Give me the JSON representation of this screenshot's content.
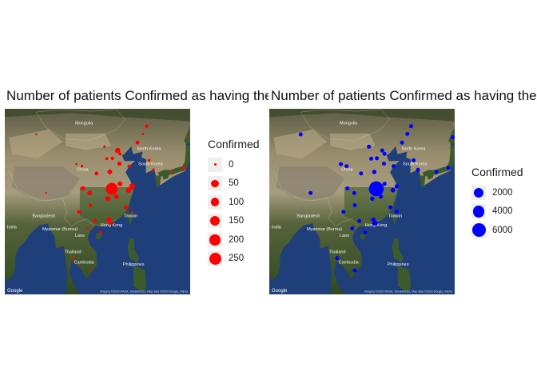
{
  "panels": [
    {
      "title": "Number of patients Confirmed as having the Novel Coronavirus",
      "color": "#ff0000",
      "legend": {
        "title": "Confirmed",
        "entries": [
          {
            "label": "0",
            "value": 0
          },
          {
            "label": "50",
            "value": 50
          },
          {
            "label": "100",
            "value": 100
          },
          {
            "label": "150",
            "value": 150
          },
          {
            "label": "200",
            "value": 200
          },
          {
            "label": "250",
            "value": 250
          }
        ]
      },
      "points": [
        {
          "lon": 114.3,
          "lat": 30.6,
          "value": 250
        },
        {
          "lon": 116.4,
          "lat": 39.9,
          "value": 50
        },
        {
          "lon": 121.5,
          "lat": 31.2,
          "value": 60
        },
        {
          "lon": 113.3,
          "lat": 23.1,
          "value": 45
        },
        {
          "lon": 120.2,
          "lat": 30.3,
          "value": 50
        },
        {
          "lon": 117.2,
          "lat": 31.8,
          "value": 40
        },
        {
          "lon": 113.6,
          "lat": 34.7,
          "value": 40
        },
        {
          "lon": 112.9,
          "lat": 28.2,
          "value": 45
        },
        {
          "lon": 115.9,
          "lat": 28.7,
          "value": 40
        },
        {
          "lon": 104.1,
          "lat": 30.7,
          "value": 35
        },
        {
          "lon": 106.5,
          "lat": 29.6,
          "value": 40
        },
        {
          "lon": 117.0,
          "lat": 36.7,
          "value": 30
        },
        {
          "lon": 119.3,
          "lat": 26.1,
          "value": 30
        },
        {
          "lon": 108.3,
          "lat": 22.8,
          "value": 25
        },
        {
          "lon": 110.3,
          "lat": 20.0,
          "value": 15
        },
        {
          "lon": 114.2,
          "lat": 22.3,
          "value": 20
        },
        {
          "lon": 120.4,
          "lat": 36.1,
          "value": 20
        },
        {
          "lon": 123.4,
          "lat": 41.8,
          "value": 25
        },
        {
          "lon": 125.3,
          "lat": 43.9,
          "value": 10
        },
        {
          "lon": 126.6,
          "lat": 45.8,
          "value": 20
        },
        {
          "lon": 101.8,
          "lat": 36.6,
          "value": 8
        },
        {
          "lon": 103.8,
          "lat": 36.1,
          "value": 12
        },
        {
          "lon": 108.9,
          "lat": 34.3,
          "value": 25
        },
        {
          "lon": 112.5,
          "lat": 37.9,
          "value": 15
        },
        {
          "lon": 114.5,
          "lat": 38.0,
          "value": 20
        },
        {
          "lon": 111.7,
          "lat": 40.8,
          "value": 10
        },
        {
          "lon": 117.2,
          "lat": 39.1,
          "value": 15
        },
        {
          "lon": 102.7,
          "lat": 25.0,
          "value": 25
        },
        {
          "lon": 106.7,
          "lat": 26.6,
          "value": 20
        },
        {
          "lon": 127.5,
          "lat": 37.5,
          "value": 15
        },
        {
          "lon": 129.0,
          "lat": 35.2,
          "value": 15
        },
        {
          "lon": 121.5,
          "lat": 25.0,
          "value": 10
        },
        {
          "lon": 139.7,
          "lat": 35.7,
          "value": 20
        },
        {
          "lon": 135.5,
          "lat": 34.7,
          "value": 10
        },
        {
          "lon": 141.3,
          "lat": 43.1,
          "value": 5
        },
        {
          "lon": 105.8,
          "lat": 21.0,
          "value": 8
        },
        {
          "lon": 106.7,
          "lat": 10.8,
          "value": 6
        },
        {
          "lon": 100.5,
          "lat": 13.8,
          "value": 10
        },
        {
          "lon": 113.5,
          "lat": 22.2,
          "value": 8
        },
        {
          "lon": 87.6,
          "lat": 43.8,
          "value": 5
        },
        {
          "lon": 91.1,
          "lat": 29.6,
          "value": 1
        }
      ]
    },
    {
      "title": "Number of patients Confirmed as having the Novel Coronavirus",
      "color": "#0000ff",
      "legend": {
        "title": "Confirmed",
        "entries": [
          {
            "label": "2000",
            "value": 2000
          },
          {
            "label": "4000",
            "value": 4000
          },
          {
            "label": "6000",
            "value": 6000
          }
        ]
      },
      "points": [
        {
          "lon": 114.3,
          "lat": 30.6,
          "value": 7150
        },
        {
          "lon": 116.4,
          "lat": 39.9,
          "value": 400
        },
        {
          "lon": 121.5,
          "lat": 31.2,
          "value": 450
        },
        {
          "lon": 113.3,
          "lat": 23.1,
          "value": 650
        },
        {
          "lon": 120.2,
          "lat": 30.3,
          "value": 720
        },
        {
          "lon": 117.2,
          "lat": 31.8,
          "value": 500
        },
        {
          "lon": 113.6,
          "lat": 34.7,
          "value": 600
        },
        {
          "lon": 112.9,
          "lat": 28.2,
          "value": 600
        },
        {
          "lon": 115.9,
          "lat": 28.7,
          "value": 500
        },
        {
          "lon": 104.1,
          "lat": 30.7,
          "value": 400
        },
        {
          "lon": 106.5,
          "lat": 29.6,
          "value": 450
        },
        {
          "lon": 117.0,
          "lat": 36.7,
          "value": 400
        },
        {
          "lon": 119.3,
          "lat": 26.1,
          "value": 350
        },
        {
          "lon": 108.3,
          "lat": 22.8,
          "value": 300
        },
        {
          "lon": 110.3,
          "lat": 20.0,
          "value": 200
        },
        {
          "lon": 114.2,
          "lat": 22.3,
          "value": 250
        },
        {
          "lon": 120.4,
          "lat": 36.1,
          "value": 250
        },
        {
          "lon": 123.4,
          "lat": 41.8,
          "value": 300
        },
        {
          "lon": 125.3,
          "lat": 43.9,
          "value": 200
        },
        {
          "lon": 126.6,
          "lat": 45.8,
          "value": 250
        },
        {
          "lon": 101.8,
          "lat": 36.6,
          "value": 150
        },
        {
          "lon": 103.8,
          "lat": 36.1,
          "value": 200
        },
        {
          "lon": 108.9,
          "lat": 34.3,
          "value": 350
        },
        {
          "lon": 112.5,
          "lat": 37.9,
          "value": 200
        },
        {
          "lon": 114.5,
          "lat": 38.0,
          "value": 300
        },
        {
          "lon": 111.7,
          "lat": 40.8,
          "value": 150
        },
        {
          "lon": 117.2,
          "lat": 39.1,
          "value": 200
        },
        {
          "lon": 102.7,
          "lat": 25.0,
          "value": 300
        },
        {
          "lon": 106.7,
          "lat": 26.6,
          "value": 250
        },
        {
          "lon": 127.5,
          "lat": 37.5,
          "value": 200
        },
        {
          "lon": 129.0,
          "lat": 35.2,
          "value": 200
        },
        {
          "lon": 121.5,
          "lat": 25.0,
          "value": 150
        },
        {
          "lon": 139.7,
          "lat": 35.7,
          "value": 300
        },
        {
          "lon": 135.5,
          "lat": 34.7,
          "value": 200
        },
        {
          "lon": 141.3,
          "lat": 43.1,
          "value": 150
        },
        {
          "lon": 105.8,
          "lat": 21.0,
          "value": 150
        },
        {
          "lon": 106.7,
          "lat": 10.8,
          "value": 150
        },
        {
          "lon": 100.5,
          "lat": 13.8,
          "value": 200
        },
        {
          "lon": 113.5,
          "lat": 22.2,
          "value": 150
        },
        {
          "lon": 87.6,
          "lat": 43.8,
          "value": 150
        },
        {
          "lon": 91.1,
          "lat": 29.6,
          "value": 100
        }
      ]
    }
  ],
  "map": {
    "lon_range": [
      76.5,
      142.0
    ],
    "lat_range": [
      5.0,
      50.0
    ],
    "labels": [
      {
        "text": "Mongolia",
        "lon": 104.5,
        "lat": 46.2
      },
      {
        "text": "China",
        "lon": 104.0,
        "lat": 35.0
      },
      {
        "text": "North Korea",
        "lon": 127.5,
        "lat": 40.0
      },
      {
        "text": "South Korea",
        "lon": 128.0,
        "lat": 36.3
      },
      {
        "text": "India",
        "lon": 79.0,
        "lat": 21.0
      },
      {
        "text": "Bangladesh",
        "lon": 90.3,
        "lat": 23.7
      },
      {
        "text": "Myanmar (Burma)",
        "lon": 96.0,
        "lat": 20.5
      },
      {
        "text": "Laos",
        "lon": 103.0,
        "lat": 19.0
      },
      {
        "text": "Thailand",
        "lon": 100.5,
        "lat": 15.0
      },
      {
        "text": "Cambodia",
        "lon": 104.5,
        "lat": 12.5
      },
      {
        "text": "Taiwan",
        "lon": 121.0,
        "lat": 23.7
      },
      {
        "text": "Philippines",
        "lon": 122.0,
        "lat": 12.0
      },
      {
        "text": "Hong Kong",
        "lon": 114.2,
        "lat": 21.5
      }
    ],
    "google": "Google",
    "attribution": "Imagery ©2020 NASA, TerraMetrics, Map data ©2020 Google, INEGI"
  }
}
